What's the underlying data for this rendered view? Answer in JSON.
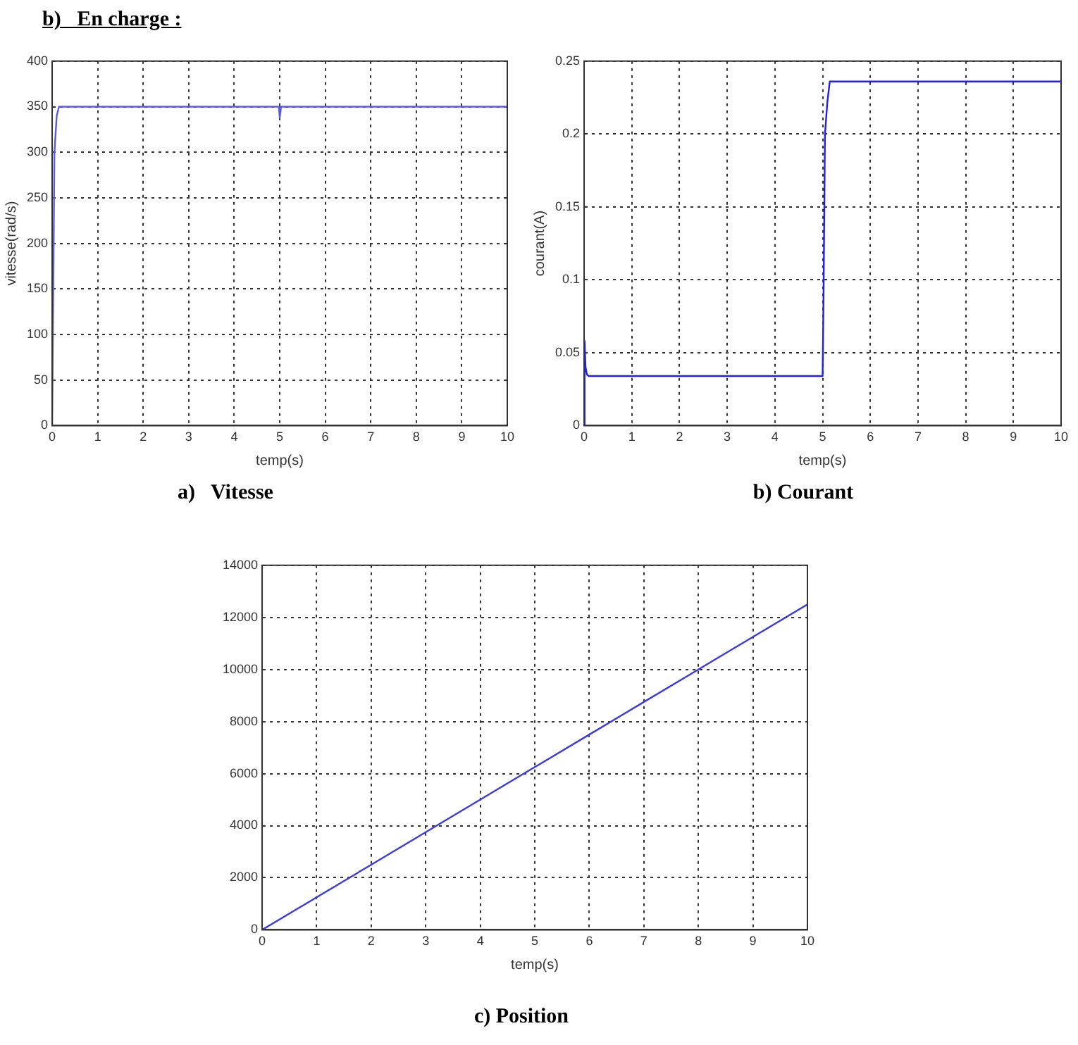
{
  "chart_data": [
    {
      "type": "line",
      "title": "a)   Vitesse",
      "annotations": [
        "b)   En charge :"
      ],
      "xlabel": "temp(s)",
      "ylabel": "vitesse(rad/s)",
      "xlim": [
        0,
        10
      ],
      "xticks": [
        0,
        1,
        2,
        3,
        4,
        5,
        6,
        7,
        8,
        9,
        10
      ],
      "ylim": [
        0,
        400
      ],
      "yticks": [
        0,
        50,
        100,
        150,
        200,
        250,
        300,
        350,
        400
      ],
      "grid": true,
      "line_style": "solid",
      "series": [
        {
          "color": "#5a5ae0",
          "x": [
            0,
            0.05,
            0.1,
            0.15,
            4.98,
            5.0,
            5.03,
            10
          ],
          "values": [
            0,
            300,
            340,
            350,
            350,
            338,
            350,
            350
          ]
        }
      ]
    },
    {
      "type": "line",
      "title": "b) Courant",
      "xlabel": "temp(s)",
      "ylabel": "courant(A)",
      "xlim": [
        0,
        10
      ],
      "xticks": [
        0,
        1,
        2,
        3,
        4,
        5,
        6,
        7,
        8,
        9,
        10
      ],
      "ylim": [
        0,
        0.25
      ],
      "yticks": [
        0,
        0.05,
        0.1,
        0.15,
        0.2,
        0.25
      ],
      "grid": true,
      "line_style": "solid",
      "series": [
        {
          "color": "#2020e8",
          "x": [
            0,
            0.01,
            0.03,
            0.06,
            0.1,
            5.0,
            5.02,
            5.05,
            5.1,
            5.15,
            10
          ],
          "values": [
            0,
            0.058,
            0.04,
            0.035,
            0.034,
            0.034,
            0.09,
            0.2,
            0.222,
            0.236,
            0.236
          ]
        }
      ]
    },
    {
      "type": "line",
      "title": "c) Position",
      "xlabel": "temp(s)",
      "xlim": [
        0,
        10
      ],
      "xticks": [
        0,
        1,
        2,
        3,
        4,
        5,
        6,
        7,
        8,
        9,
        10
      ],
      "ylim": [
        0,
        14000
      ],
      "yticks": [
        0,
        2000,
        4000,
        6000,
        8000,
        10000,
        12000,
        14000
      ],
      "grid": true,
      "line_style": "solid",
      "series": [
        {
          "color": "#3a3ae0",
          "x": [
            0,
            1,
            2,
            3,
            4,
            5,
            6,
            7,
            8,
            9,
            10
          ],
          "values": [
            0,
            1250,
            2500,
            3750,
            5000,
            6250,
            7500,
            8750,
            10000,
            11250,
            12500
          ]
        }
      ]
    }
  ]
}
